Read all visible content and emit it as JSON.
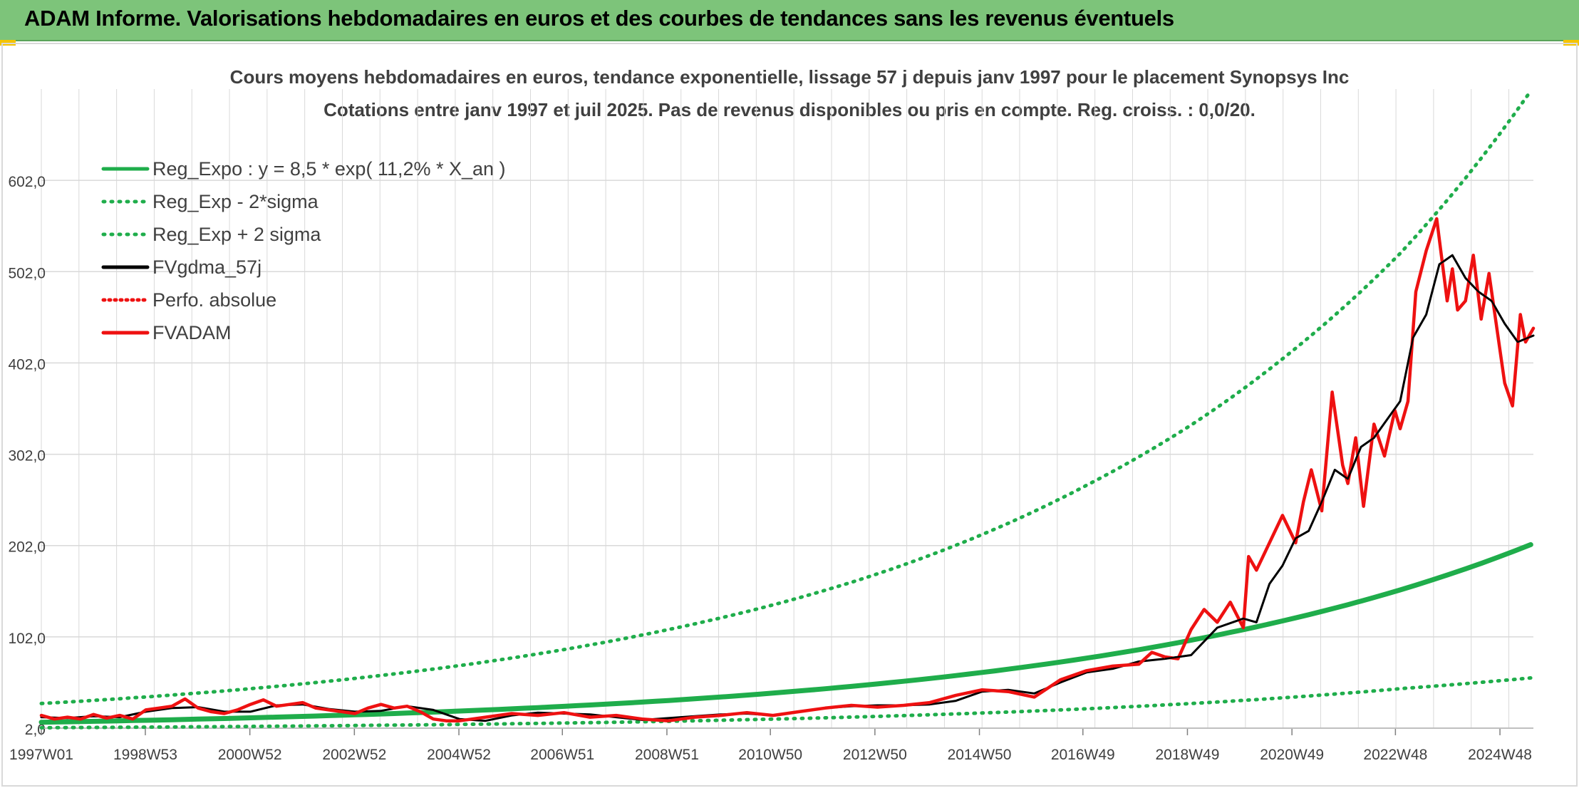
{
  "banner": {
    "title": "ADAM Informe. Valorisations hebdomadaires en euros et des courbes de tendances sans les revenus éventuels"
  },
  "colors": {
    "banner_bg": "#7dc47a",
    "reg_expo": "#1fad4b",
    "sigma": "#1fad4b",
    "fvgdma": "#000000",
    "fvadam": "#ee1111",
    "perfo": "#ee1111",
    "grid": "#d9d9d9"
  },
  "chart_data": {
    "type": "line",
    "title": "Cours moyens hebdomadaires en euros, tendance exponentielle, lissage 57 j depuis janv 1997 pour le placement Synopsys Inc",
    "subtitle": "Cotations entre janv 1997 et juil 2025. Pas de revenus disponibles ou pris en compte. Reg. croiss. : 0,0/20.",
    "xlabel": "",
    "ylabel": "",
    "x_range": [
      1997.0,
      2025.55
    ],
    "ylim": [
      2.0,
      702.0
    ],
    "y_ticks": [
      2.0,
      102.0,
      202.0,
      302.0,
      402.0,
      502.0,
      602.0
    ],
    "y_tick_labels": [
      "2,0",
      "102,0",
      "202,0",
      "302,0",
      "402,0",
      "502,0",
      "602,0"
    ],
    "x_ticks": [
      {
        "label": "1997W01",
        "x": 1997.0
      },
      {
        "label": "1998W53",
        "x": 1998.99
      },
      {
        "label": "2000W52",
        "x": 2000.99
      },
      {
        "label": "2002W52",
        "x": 2002.99
      },
      {
        "label": "2004W52",
        "x": 2004.99
      },
      {
        "label": "2006W51",
        "x": 2006.97
      },
      {
        "label": "2008W51",
        "x": 2008.97
      },
      {
        "label": "2010W50",
        "x": 2010.95
      },
      {
        "label": "2012W50",
        "x": 2012.95
      },
      {
        "label": "2014W50",
        "x": 2014.95
      },
      {
        "label": "2016W49",
        "x": 2016.93
      },
      {
        "label": "2018W49",
        "x": 2018.93
      },
      {
        "label": "2020W49",
        "x": 2020.93
      },
      {
        "label": "2022W48",
        "x": 2022.91
      },
      {
        "label": "2024W48",
        "x": 2024.91
      }
    ],
    "legend_position": "top-left",
    "grid": true,
    "series": [
      {
        "name": "Reg_Expo : y = 8,5 * exp( 11,2% *  X_an )",
        "style": "solid-thick",
        "x": [
          1997,
          1999,
          2001,
          2003,
          2005,
          2007,
          2009,
          2011,
          2013,
          2015,
          2017,
          2019,
          2021,
          2023,
          2025.5
        ],
        "values": [
          8.5,
          10.6,
          13.3,
          16.6,
          20.7,
          25.9,
          32.3,
          40.4,
          50.5,
          63.0,
          78.7,
          98.3,
          122.8,
          153.4,
          203.0
        ]
      },
      {
        "name": "Reg_Exp - 2*sigma",
        "style": "dotted",
        "x": [
          1997,
          1999,
          2001,
          2003,
          2005,
          2007,
          2009,
          2011,
          2013,
          2015,
          2017,
          2019,
          2021,
          2023,
          2025.5
        ],
        "values": [
          2.5,
          3.1,
          3.9,
          4.9,
          6.1,
          7.6,
          9.5,
          11.9,
          14.9,
          18.6,
          23.2,
          29.0,
          36.2,
          45.2,
          57.0
        ]
      },
      {
        "name": "Reg_Exp + 2 sigma",
        "style": "dotted",
        "x": [
          1997,
          1999,
          2001,
          2003,
          2005,
          2007,
          2009,
          2011,
          2013,
          2015,
          2017,
          2019,
          2021,
          2023,
          2025.5
        ],
        "values": [
          29.0,
          36.2,
          45.2,
          56.5,
          70.5,
          88.1,
          110.0,
          137.0,
          171.0,
          214.0,
          268.0,
          334.0,
          418.0,
          522.0,
          700.0
        ]
      },
      {
        "name": "FVgdma_57j",
        "style": "solid-black",
        "x": [
          1997.0,
          1997.5,
          1998.0,
          1998.5,
          1999.0,
          1999.5,
          2000.0,
          2000.5,
          2001.0,
          2001.5,
          2002.0,
          2002.5,
          2003.0,
          2003.5,
          2004.0,
          2004.5,
          2005.0,
          2005.5,
          2006.0,
          2006.5,
          2007.0,
          2007.5,
          2008.0,
          2008.5,
          2009.0,
          2009.5,
          2010.0,
          2010.5,
          2011.0,
          2011.5,
          2012.0,
          2012.5,
          2013.0,
          2013.5,
          2014.0,
          2014.5,
          2015.0,
          2015.5,
          2016.0,
          2016.5,
          2017.0,
          2017.5,
          2018.0,
          2018.5,
          2019.0,
          2019.5,
          2020.0,
          2020.25,
          2020.5,
          2020.75,
          2021.0,
          2021.25,
          2021.5,
          2021.75,
          2022.0,
          2022.25,
          2022.5,
          2022.75,
          2023.0,
          2023.25,
          2023.5,
          2023.75,
          2024.0,
          2024.25,
          2024.5,
          2024.75,
          2025.0,
          2025.25,
          2025.55
        ],
        "values": [
          14,
          13,
          15,
          14,
          20,
          24,
          25,
          20,
          20,
          27,
          28,
          23,
          20,
          21,
          26,
          22,
          12,
          10,
          16,
          19,
          18,
          17,
          14,
          11,
          13,
          15,
          17,
          18,
          16,
          20,
          24,
          26,
          27,
          27,
          28,
          32,
          42,
          44,
          40,
          52,
          63,
          67,
          75,
          78,
          82,
          112,
          122,
          118,
          160,
          180,
          210,
          218,
          250,
          285,
          275,
          310,
          320,
          340,
          360,
          430,
          455,
          510,
          520,
          495,
          480,
          470,
          445,
          425,
          432
        ]
      },
      {
        "name": "Perfo. absolue",
        "style": "dotted-red",
        "x": [],
        "values": []
      },
      {
        "name": "FVADAM",
        "style": "solid-red",
        "x": [
          1997.0,
          1997.25,
          1997.5,
          1997.75,
          1998.0,
          1998.25,
          1998.5,
          1998.75,
          1999.0,
          1999.25,
          1999.5,
          1999.75,
          2000.0,
          2000.25,
          2000.5,
          2000.75,
          2001.0,
          2001.25,
          2001.5,
          2001.75,
          2002.0,
          2002.25,
          2002.5,
          2002.75,
          2003.0,
          2003.25,
          2003.5,
          2003.75,
          2004.0,
          2004.25,
          2004.5,
          2004.75,
          2005.0,
          2005.5,
          2006.0,
          2006.5,
          2007.0,
          2007.5,
          2008.0,
          2008.5,
          2009.0,
          2009.5,
          2010.0,
          2010.5,
          2011.0,
          2011.5,
          2012.0,
          2012.5,
          2013.0,
          2013.5,
          2014.0,
          2014.5,
          2015.0,
          2015.5,
          2016.0,
          2016.5,
          2017.0,
          2017.5,
          2018.0,
          2018.25,
          2018.5,
          2018.75,
          2019.0,
          2019.25,
          2019.5,
          2019.75,
          2020.0,
          2020.1,
          2020.25,
          2020.5,
          2020.75,
          2021.0,
          2021.15,
          2021.3,
          2021.5,
          2021.7,
          2021.9,
          2022.0,
          2022.15,
          2022.3,
          2022.5,
          2022.7,
          2022.9,
          2023.0,
          2023.15,
          2023.3,
          2023.5,
          2023.7,
          2023.9,
          2024.0,
          2024.1,
          2024.25,
          2024.4,
          2024.55,
          2024.7,
          2024.85,
          2025.0,
          2025.15,
          2025.3,
          2025.4,
          2025.55
        ],
        "values": [
          16,
          12,
          14,
          12,
          17,
          13,
          16,
          12,
          22,
          24,
          26,
          34,
          24,
          20,
          18,
          22,
          28,
          33,
          26,
          28,
          30,
          24,
          22,
          20,
          18,
          24,
          28,
          24,
          26,
          20,
          12,
          10,
          10,
          14,
          18,
          16,
          19,
          14,
          16,
          12,
          10,
          14,
          16,
          19,
          16,
          20,
          24,
          27,
          25,
          27,
          30,
          38,
          44,
          42,
          36,
          55,
          65,
          70,
          72,
          85,
          80,
          78,
          110,
          132,
          118,
          140,
          112,
          190,
          175,
          205,
          235,
          205,
          250,
          285,
          240,
          370,
          290,
          270,
          320,
          245,
          335,
          300,
          350,
          330,
          360,
          480,
          525,
          560,
          470,
          505,
          460,
          470,
          520,
          450,
          500,
          440,
          380,
          355,
          455,
          425,
          440
        ]
      }
    ]
  }
}
